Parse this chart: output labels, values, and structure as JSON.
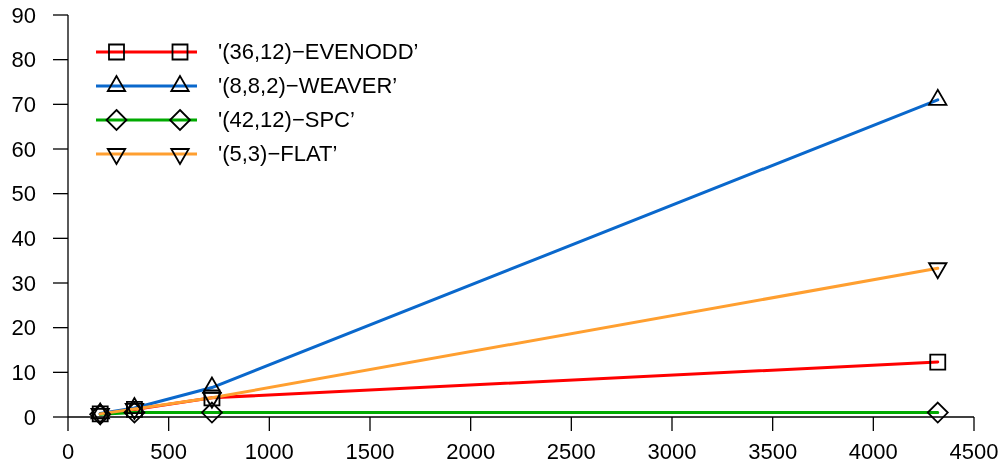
{
  "chart_data": {
    "type": "line",
    "x": [
      160,
      330,
      715,
      4320
    ],
    "series": [
      {
        "name": "'(36,12)−EVENODD’",
        "color": "#ff0000",
        "marker": "square",
        "values": [
          0.7,
          1.7,
          4.3,
          12.3
        ]
      },
      {
        "name": "'(8,8,2)−WEAVER’",
        "color": "#0a68cc",
        "marker": "triangle",
        "values": [
          0.8,
          2,
          6.6,
          71
        ]
      },
      {
        "name": "'(42,12)−SPC’",
        "color": "#00aa00",
        "marker": "diamond",
        "values": [
          0.6,
          1,
          1,
          1
        ]
      },
      {
        "name": "'(5,3)−FLAT’",
        "color": "#ff9f30",
        "marker": "triangle",
        "values": [
          0.7,
          1.8,
          4.3,
          33.3
        ]
      }
    ],
    "xlim": [
      0,
      4500
    ],
    "xticks": [
      0,
      500,
      1000,
      1500,
      2000,
      2500,
      3000,
      3500,
      4000,
      4500
    ],
    "ylim": [
      0,
      90
    ],
    "yticks": [
      0,
      10,
      20,
      30,
      40,
      50,
      60,
      70,
      80,
      90
    ],
    "legend": "top left"
  }
}
